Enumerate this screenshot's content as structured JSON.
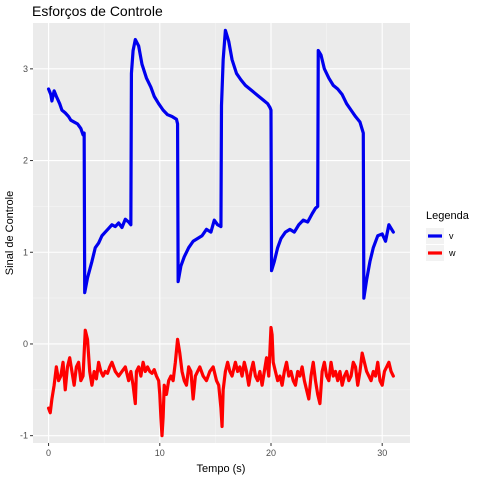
{
  "chart_data": {
    "type": "line",
    "title": "Esforços de Controle",
    "xlabel": "Tempo (s)",
    "ylabel": "Sinal de Controle",
    "xlim": [
      -1.4,
      32.5
    ],
    "ylim": [
      -1.08,
      3.5
    ],
    "x_ticks": [
      0,
      10,
      20,
      30
    ],
    "y_ticks": [
      -1,
      0,
      1,
      2,
      3
    ],
    "grid": true,
    "legend": {
      "title": "Legenda",
      "position": "right"
    },
    "series": [
      {
        "name": "v",
        "color": "#0000ee",
        "points": [
          [
            0,
            2.78
          ],
          [
            0.2,
            2.72
          ],
          [
            0.3,
            2.65
          ],
          [
            0.5,
            2.76
          ],
          [
            0.7,
            2.7
          ],
          [
            1.0,
            2.62
          ],
          [
            1.2,
            2.55
          ],
          [
            1.5,
            2.52
          ],
          [
            1.8,
            2.48
          ],
          [
            2.0,
            2.44
          ],
          [
            2.3,
            2.42
          ],
          [
            2.6,
            2.4
          ],
          [
            2.9,
            2.35
          ],
          [
            3.1,
            2.28
          ],
          [
            3.2,
            2.3
          ],
          [
            3.25,
            0.56
          ],
          [
            3.5,
            0.72
          ],
          [
            3.9,
            0.9
          ],
          [
            4.2,
            1.05
          ],
          [
            4.5,
            1.1
          ],
          [
            4.8,
            1.18
          ],
          [
            5.1,
            1.22
          ],
          [
            5.4,
            1.26
          ],
          [
            5.7,
            1.3
          ],
          [
            6.0,
            1.28
          ],
          [
            6.3,
            1.32
          ],
          [
            6.6,
            1.27
          ],
          [
            6.9,
            1.36
          ],
          [
            7.2,
            1.33
          ],
          [
            7.4,
            1.3
          ],
          [
            7.45,
            2.95
          ],
          [
            7.6,
            3.2
          ],
          [
            7.8,
            3.32
          ],
          [
            8.1,
            3.25
          ],
          [
            8.4,
            3.05
          ],
          [
            8.8,
            2.9
          ],
          [
            9.2,
            2.8
          ],
          [
            9.5,
            2.7
          ],
          [
            9.9,
            2.62
          ],
          [
            10.3,
            2.55
          ],
          [
            10.7,
            2.5
          ],
          [
            11.1,
            2.48
          ],
          [
            11.5,
            2.45
          ],
          [
            11.6,
            2.4
          ],
          [
            11.65,
            0.68
          ],
          [
            11.9,
            0.85
          ],
          [
            12.2,
            0.95
          ],
          [
            12.6,
            1.05
          ],
          [
            13.0,
            1.12
          ],
          [
            13.4,
            1.15
          ],
          [
            13.8,
            1.18
          ],
          [
            14.2,
            1.25
          ],
          [
            14.6,
            1.22
          ],
          [
            14.9,
            1.35
          ],
          [
            15.2,
            1.3
          ],
          [
            15.5,
            1.28
          ],
          [
            15.55,
            2.6
          ],
          [
            15.7,
            3.1
          ],
          [
            15.9,
            3.42
          ],
          [
            16.2,
            3.3
          ],
          [
            16.5,
            3.1
          ],
          [
            16.9,
            2.95
          ],
          [
            17.3,
            2.88
          ],
          [
            17.7,
            2.82
          ],
          [
            18.1,
            2.78
          ],
          [
            18.5,
            2.74
          ],
          [
            18.9,
            2.7
          ],
          [
            19.3,
            2.66
          ],
          [
            19.7,
            2.62
          ],
          [
            19.9,
            2.58
          ],
          [
            20.0,
            2.55
          ],
          [
            20.05,
            0.8
          ],
          [
            20.3,
            0.9
          ],
          [
            20.6,
            1.05
          ],
          [
            20.9,
            1.15
          ],
          [
            21.3,
            1.22
          ],
          [
            21.7,
            1.25
          ],
          [
            22.1,
            1.22
          ],
          [
            22.5,
            1.3
          ],
          [
            22.9,
            1.35
          ],
          [
            23.3,
            1.33
          ],
          [
            23.7,
            1.42
          ],
          [
            24.0,
            1.48
          ],
          [
            24.2,
            1.5
          ],
          [
            24.25,
            3.2
          ],
          [
            24.5,
            3.15
          ],
          [
            24.8,
            3.0
          ],
          [
            25.2,
            2.9
          ],
          [
            25.6,
            2.82
          ],
          [
            26.0,
            2.78
          ],
          [
            26.4,
            2.72
          ],
          [
            26.8,
            2.62
          ],
          [
            27.2,
            2.55
          ],
          [
            27.6,
            2.48
          ],
          [
            28.0,
            2.42
          ],
          [
            28.3,
            2.3
          ],
          [
            28.35,
            0.5
          ],
          [
            28.6,
            0.7
          ],
          [
            28.9,
            0.9
          ],
          [
            29.2,
            1.05
          ],
          [
            29.6,
            1.18
          ],
          [
            30.0,
            1.2
          ],
          [
            30.3,
            1.12
          ],
          [
            30.6,
            1.3
          ],
          [
            31.0,
            1.22
          ]
        ]
      },
      {
        "name": "w",
        "color": "#ff0000",
        "points": [
          [
            0,
            -0.7
          ],
          [
            0.15,
            -0.75
          ],
          [
            0.3,
            -0.6
          ],
          [
            0.5,
            -0.45
          ],
          [
            0.7,
            -0.25
          ],
          [
            0.9,
            -0.4
          ],
          [
            1.1,
            -0.35
          ],
          [
            1.3,
            -0.2
          ],
          [
            1.5,
            -0.5
          ],
          [
            1.7,
            -0.25
          ],
          [
            1.9,
            -0.15
          ],
          [
            2.1,
            -0.3
          ],
          [
            2.3,
            -0.45
          ],
          [
            2.5,
            -0.25
          ],
          [
            2.7,
            -0.2
          ],
          [
            2.9,
            -0.4
          ],
          [
            3.1,
            -0.35
          ],
          [
            3.3,
            0.15
          ],
          [
            3.5,
            0.05
          ],
          [
            3.7,
            -0.3
          ],
          [
            3.9,
            -0.45
          ],
          [
            4.1,
            -0.3
          ],
          [
            4.3,
            -0.38
          ],
          [
            4.5,
            -0.2
          ],
          [
            4.7,
            -0.3
          ],
          [
            4.9,
            -0.35
          ],
          [
            5.1,
            -0.3
          ],
          [
            5.3,
            -0.32
          ],
          [
            5.5,
            -0.25
          ],
          [
            5.7,
            -0.2
          ],
          [
            6.0,
            -0.3
          ],
          [
            6.3,
            -0.35
          ],
          [
            6.6,
            -0.3
          ],
          [
            6.9,
            -0.25
          ],
          [
            7.2,
            -0.4
          ],
          [
            7.4,
            -0.3
          ],
          [
            7.6,
            -0.45
          ],
          [
            7.8,
            -0.65
          ],
          [
            7.9,
            -0.3
          ],
          [
            8.1,
            -0.25
          ],
          [
            8.3,
            -0.35
          ],
          [
            8.5,
            -0.2
          ],
          [
            8.7,
            -0.3
          ],
          [
            8.9,
            -0.25
          ],
          [
            9.1,
            -0.3
          ],
          [
            9.3,
            -0.32
          ],
          [
            9.5,
            -0.28
          ],
          [
            9.7,
            -0.35
          ],
          [
            9.9,
            -0.4
          ],
          [
            10.0,
            -0.55
          ],
          [
            10.1,
            -0.8
          ],
          [
            10.2,
            -1.0
          ],
          [
            10.3,
            -0.8
          ],
          [
            10.4,
            -0.45
          ],
          [
            10.6,
            -0.55
          ],
          [
            10.8,
            -0.4
          ],
          [
            11.0,
            -0.35
          ],
          [
            11.2,
            -0.4
          ],
          [
            11.4,
            -0.2
          ],
          [
            11.6,
            0.05
          ],
          [
            11.8,
            -0.1
          ],
          [
            12.0,
            -0.3
          ],
          [
            12.2,
            -0.4
          ],
          [
            12.4,
            -0.45
          ],
          [
            12.6,
            -0.25
          ],
          [
            12.8,
            -0.3
          ],
          [
            13.0,
            -0.6
          ],
          [
            13.2,
            -0.35
          ],
          [
            13.4,
            -0.3
          ],
          [
            13.6,
            -0.25
          ],
          [
            13.9,
            -0.35
          ],
          [
            14.2,
            -0.4
          ],
          [
            14.5,
            -0.3
          ],
          [
            14.8,
            -0.25
          ],
          [
            15.1,
            -0.4
          ],
          [
            15.3,
            -0.45
          ],
          [
            15.5,
            -0.7
          ],
          [
            15.6,
            -0.9
          ],
          [
            15.7,
            -0.5
          ],
          [
            15.9,
            -0.3
          ],
          [
            16.1,
            -0.2
          ],
          [
            16.3,
            -0.3
          ],
          [
            16.5,
            -0.35
          ],
          [
            16.8,
            -0.2
          ],
          [
            17.0,
            -0.3
          ],
          [
            17.2,
            -0.25
          ],
          [
            17.4,
            -0.35
          ],
          [
            17.6,
            -0.2
          ],
          [
            17.8,
            -0.3
          ],
          [
            18.0,
            -0.45
          ],
          [
            18.2,
            -0.3
          ],
          [
            18.4,
            -0.2
          ],
          [
            18.6,
            -0.35
          ],
          [
            18.8,
            -0.4
          ],
          [
            19.0,
            -0.3
          ],
          [
            19.2,
            -0.45
          ],
          [
            19.4,
            -0.3
          ],
          [
            19.6,
            -0.15
          ],
          [
            19.8,
            -0.35
          ],
          [
            20.0,
            0.18
          ],
          [
            20.1,
            0.1
          ],
          [
            20.2,
            -0.2
          ],
          [
            20.4,
            -0.3
          ],
          [
            20.6,
            -0.4
          ],
          [
            20.8,
            -0.35
          ],
          [
            21.0,
            -0.45
          ],
          [
            21.2,
            -0.3
          ],
          [
            21.4,
            -0.2
          ],
          [
            21.6,
            -0.35
          ],
          [
            21.8,
            -0.3
          ],
          [
            22.0,
            -0.4
          ],
          [
            22.2,
            -0.45
          ],
          [
            22.4,
            -0.3
          ],
          [
            22.6,
            -0.35
          ],
          [
            22.8,
            -0.25
          ],
          [
            23.0,
            -0.4
          ],
          [
            23.2,
            -0.5
          ],
          [
            23.4,
            -0.6
          ],
          [
            23.6,
            -0.35
          ],
          [
            23.8,
            -0.2
          ],
          [
            24.0,
            -0.4
          ],
          [
            24.2,
            -0.55
          ],
          [
            24.4,
            -0.65
          ],
          [
            24.6,
            -0.3
          ],
          [
            24.8,
            -0.2
          ],
          [
            25.0,
            -0.35
          ],
          [
            25.2,
            -0.4
          ],
          [
            25.4,
            -0.2
          ],
          [
            25.6,
            -0.35
          ],
          [
            25.8,
            -0.3
          ],
          [
            26.0,
            -0.4
          ],
          [
            26.2,
            -0.3
          ],
          [
            26.4,
            -0.45
          ],
          [
            26.6,
            -0.35
          ],
          [
            26.8,
            -0.3
          ],
          [
            27.0,
            -0.4
          ],
          [
            27.2,
            -0.35
          ],
          [
            27.4,
            -0.2
          ],
          [
            27.6,
            -0.25
          ],
          [
            27.8,
            -0.45
          ],
          [
            28.0,
            -0.3
          ],
          [
            28.2,
            -0.1
          ],
          [
            28.4,
            -0.2
          ],
          [
            28.6,
            -0.3
          ],
          [
            28.8,
            -0.35
          ],
          [
            29.0,
            -0.4
          ],
          [
            29.2,
            -0.3
          ],
          [
            29.4,
            -0.35
          ],
          [
            29.6,
            -0.2
          ],
          [
            29.8,
            -0.4
          ],
          [
            30.0,
            -0.45
          ],
          [
            30.2,
            -0.3
          ],
          [
            30.4,
            -0.25
          ],
          [
            30.6,
            -0.2
          ],
          [
            30.8,
            -0.3
          ],
          [
            31.0,
            -0.35
          ]
        ]
      }
    ]
  }
}
